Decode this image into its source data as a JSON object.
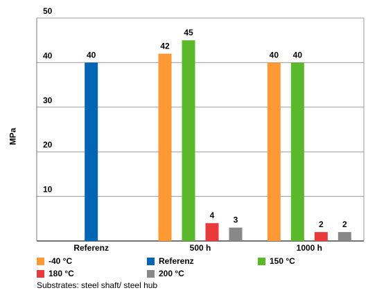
{
  "chart_data": {
    "type": "bar",
    "title": "",
    "xlabel": "",
    "ylabel": "MPa",
    "ylim": [
      0,
      50
    ],
    "yticks": [
      10,
      20,
      30,
      40,
      50
    ],
    "grid": true,
    "legend_position": "bottom",
    "categories": [
      "Referenz",
      "500 h",
      "1000 h"
    ],
    "series": [
      {
        "name": "-40 °C",
        "color": "#ff9933",
        "values": [
          null,
          42,
          40
        ]
      },
      {
        "name": "Referenz",
        "color": "#0066b3",
        "values": [
          40,
          null,
          null
        ]
      },
      {
        "name": "150 °C",
        "color": "#5ab82a",
        "values": [
          null,
          45,
          40
        ]
      },
      {
        "name": "180 °C",
        "color": "#e83a3a",
        "values": [
          null,
          4,
          2
        ]
      },
      {
        "name": "200 °C",
        "color": "#888888",
        "values": [
          null,
          3,
          2
        ]
      }
    ],
    "data_labels": [
      "40",
      "42",
      "45",
      "4",
      "3",
      "40",
      "40",
      "2",
      "2"
    ]
  },
  "caption": "Substrates: steel shaft/ steel hub"
}
